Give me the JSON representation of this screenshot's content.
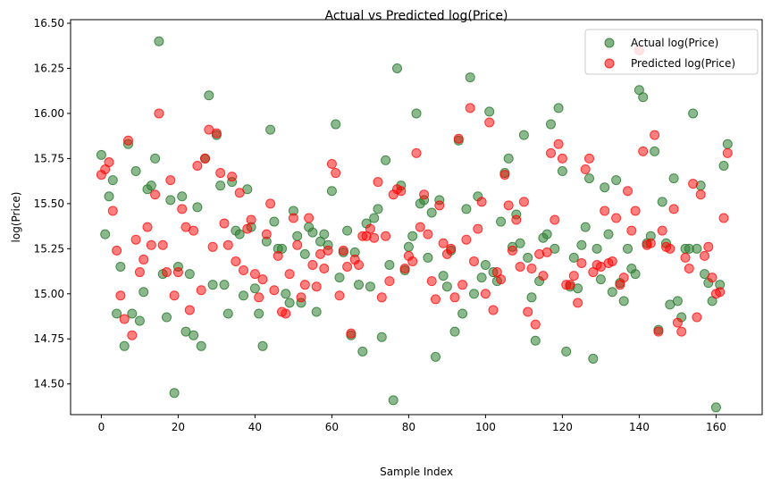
{
  "chart_data": {
    "type": "scatter",
    "title": "Actual vs Predicted log(Price)",
    "xlabel": "Sample Index",
    "ylabel": "log(Price)",
    "xlim": [
      -8,
      172
    ],
    "ylim": [
      14.33,
      16.52
    ],
    "xticks": [
      0,
      20,
      40,
      60,
      80,
      100,
      120,
      140,
      160
    ],
    "yticks": [
      14.5,
      14.75,
      15.0,
      15.25,
      15.5,
      15.75,
      16.0,
      16.25,
      16.5
    ],
    "ytick_labels": [
      "14.50",
      "14.75",
      "15.00",
      "15.25",
      "15.50",
      "15.75",
      "16.00",
      "16.25",
      "16.50"
    ],
    "grid": false,
    "legend_position": "top-right",
    "series": [
      {
        "name": "Actual log(Price)",
        "color": "#2e7d32",
        "x": [
          0,
          1,
          2,
          3,
          4,
          5,
          6,
          7,
          8,
          9,
          10,
          11,
          12,
          13,
          14,
          15,
          16,
          17,
          18,
          19,
          20,
          21,
          22,
          23,
          24,
          25,
          26,
          27,
          28,
          29,
          30,
          31,
          32,
          33,
          34,
          35,
          36,
          37,
          38,
          39,
          40,
          41,
          42,
          43,
          44,
          45,
          46,
          47,
          48,
          49,
          50,
          51,
          52,
          53,
          54,
          55,
          56,
          57,
          58,
          59,
          60,
          61,
          62,
          63,
          64,
          65,
          66,
          67,
          68,
          69,
          70,
          71,
          72,
          73,
          74,
          75,
          76,
          77,
          78,
          79,
          80,
          81,
          82,
          83,
          84,
          85,
          86,
          87,
          88,
          89,
          90,
          91,
          92,
          93,
          94,
          95,
          96,
          97,
          98,
          99,
          100,
          101,
          102,
          103,
          104,
          105,
          106,
          107,
          108,
          109,
          110,
          111,
          112,
          113,
          114,
          115,
          116,
          117,
          118,
          119,
          120,
          121,
          122,
          123,
          124,
          125,
          126,
          127,
          128,
          129,
          130,
          131,
          132,
          133,
          134,
          135,
          136,
          137,
          138,
          139,
          140,
          141,
          142,
          143,
          144,
          145,
          146,
          147,
          148,
          149,
          150,
          151,
          152,
          153,
          154,
          155,
          156,
          157,
          158,
          159,
          160,
          161,
          162,
          163
        ],
        "y": [
          15.77,
          15.33,
          15.54,
          15.63,
          14.89,
          15.15,
          14.71,
          15.83,
          14.89,
          15.68,
          14.85,
          15.01,
          15.58,
          15.6,
          15.75,
          16.4,
          15.11,
          14.87,
          15.52,
          14.45,
          15.15,
          15.54,
          14.79,
          15.11,
          14.77,
          15.48,
          14.71,
          15.75,
          16.1,
          15.05,
          15.88,
          15.6,
          15.05,
          14.89,
          15.62,
          15.35,
          15.33,
          14.99,
          15.58,
          15.37,
          15.03,
          14.89,
          14.71,
          15.29,
          15.91,
          15.4,
          15.25,
          15.25,
          15.0,
          14.95,
          15.46,
          15.32,
          14.95,
          15.22,
          15.37,
          15.34,
          14.9,
          15.29,
          15.33,
          15.27,
          15.57,
          15.94,
          15.09,
          15.23,
          15.35,
          14.77,
          15.23,
          15.05,
          14.68,
          15.39,
          15.04,
          15.42,
          15.47,
          14.76,
          15.74,
          15.16,
          14.41,
          16.25,
          15.6,
          15.13,
          15.26,
          15.32,
          16.0,
          15.5,
          15.52,
          15.2,
          15.45,
          14.65,
          15.52,
          15.1,
          15.04,
          15.24,
          14.79,
          15.85,
          14.89,
          15.47,
          16.2,
          15.0,
          15.54,
          15.09,
          15.16,
          16.01,
          15.12,
          15.07,
          15.4,
          15.67,
          15.75,
          15.26,
          15.44,
          15.28,
          15.88,
          15.2,
          14.98,
          14.74,
          15.07,
          15.31,
          15.33,
          15.94,
          15.25,
          16.03,
          15.68,
          14.68,
          15.04,
          15.2,
          15.03,
          15.27,
          15.37,
          15.64,
          14.64,
          15.25,
          15.08,
          15.59,
          15.33,
          15.01,
          15.63,
          15.06,
          14.96,
          15.25,
          15.14,
          15.11,
          16.13,
          16.09,
          15.28,
          15.32,
          15.79,
          14.8,
          15.51,
          15.28,
          14.94,
          15.64,
          14.96,
          14.87,
          15.25,
          15.25,
          16.0,
          15.25,
          15.6,
          15.11,
          15.06,
          14.96,
          14.37,
          15.05,
          15.71,
          15.83
        ]
      },
      {
        "name": "Predicted log(Price)",
        "color": "#ff0000",
        "x": [
          0,
          1,
          2,
          3,
          4,
          5,
          6,
          7,
          8,
          9,
          10,
          11,
          12,
          13,
          14,
          15,
          16,
          17,
          18,
          19,
          20,
          21,
          22,
          23,
          24,
          25,
          26,
          27,
          28,
          29,
          30,
          31,
          32,
          33,
          34,
          35,
          36,
          37,
          38,
          39,
          40,
          41,
          42,
          43,
          44,
          45,
          46,
          47,
          48,
          49,
          50,
          51,
          52,
          53,
          54,
          55,
          56,
          57,
          58,
          59,
          60,
          61,
          62,
          63,
          64,
          65,
          66,
          67,
          68,
          69,
          70,
          71,
          72,
          73,
          74,
          75,
          76,
          77,
          78,
          79,
          80,
          81,
          82,
          83,
          84,
          85,
          86,
          87,
          88,
          89,
          90,
          91,
          92,
          93,
          94,
          95,
          96,
          97,
          98,
          99,
          100,
          101,
          102,
          103,
          104,
          105,
          106,
          107,
          108,
          109,
          110,
          111,
          112,
          113,
          114,
          115,
          116,
          117,
          118,
          119,
          120,
          121,
          122,
          123,
          124,
          125,
          126,
          127,
          128,
          129,
          130,
          131,
          132,
          133,
          134,
          135,
          136,
          137,
          138,
          139,
          140,
          141,
          142,
          143,
          144,
          145,
          146,
          147,
          148,
          149,
          150,
          151,
          152,
          153,
          154,
          155,
          156,
          157,
          158,
          159,
          160,
          161,
          162,
          163
        ],
        "y": [
          15.66,
          15.69,
          15.73,
          15.46,
          15.24,
          14.99,
          14.86,
          15.85,
          14.77,
          15.3,
          15.12,
          15.19,
          15.37,
          15.27,
          15.55,
          16.0,
          15.27,
          15.12,
          15.63,
          14.99,
          15.12,
          15.47,
          15.37,
          14.91,
          15.35,
          15.71,
          15.02,
          15.75,
          15.91,
          15.26,
          15.89,
          15.67,
          15.39,
          15.27,
          15.65,
          15.18,
          15.56,
          15.13,
          15.36,
          15.41,
          15.11,
          14.98,
          15.08,
          15.33,
          15.5,
          15.02,
          15.21,
          14.9,
          14.89,
          15.11,
          15.42,
          15.27,
          14.98,
          15.05,
          15.42,
          15.16,
          15.04,
          15.22,
          15.14,
          15.24,
          15.72,
          15.67,
          14.99,
          15.24,
          15.15,
          14.78,
          15.19,
          15.16,
          15.32,
          15.32,
          15.36,
          15.31,
          15.62,
          14.98,
          15.32,
          15.07,
          15.55,
          15.58,
          15.57,
          15.14,
          15.21,
          15.18,
          15.78,
          15.37,
          15.55,
          15.33,
          15.07,
          14.97,
          15.49,
          15.28,
          15.22,
          15.25,
          14.98,
          15.86,
          15.05,
          15.3,
          16.03,
          15.18,
          15.36,
          15.51,
          15.0,
          15.95,
          14.91,
          15.12,
          15.08,
          15.66,
          15.49,
          15.24,
          15.41,
          15.15,
          15.51,
          14.9,
          15.14,
          14.83,
          15.22,
          15.1,
          15.23,
          15.78,
          15.41,
          15.83,
          15.75,
          15.05,
          15.05,
          15.1,
          14.95,
          15.17,
          15.69,
          15.75,
          15.12,
          15.16,
          15.15,
          15.46,
          15.17,
          15.18,
          15.42,
          15.05,
          15.09,
          15.57,
          15.35,
          15.46,
          16.35,
          15.79,
          15.27,
          15.28,
          15.88,
          14.79,
          15.35,
          15.26,
          15.25,
          15.47,
          14.84,
          14.79,
          15.2,
          15.14,
          15.61,
          14.87,
          15.55,
          15.21,
          15.26,
          15.09,
          15.0,
          15.01,
          15.42,
          15.78
        ]
      }
    ]
  }
}
